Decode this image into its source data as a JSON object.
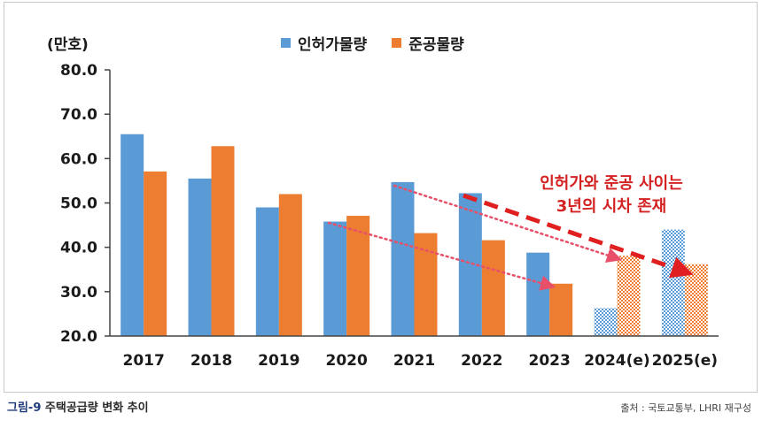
{
  "chart_data": {
    "type": "bar",
    "unit_label": "(만호)",
    "categories": [
      "2017",
      "2018",
      "2019",
      "2020",
      "2021",
      "2022",
      "2023",
      "2024(e)",
      "2025(e)"
    ],
    "estimated_categories": [
      "2024(e)",
      "2025(e)"
    ],
    "series": [
      {
        "name": "인허가물량",
        "color": "#5b9bd5",
        "values": [
          65.5,
          55.5,
          49.0,
          45.8,
          54.7,
          52.2,
          38.8,
          26.3,
          44.0
        ]
      },
      {
        "name": "준공물량",
        "color": "#ed7d31",
        "values": [
          57.1,
          62.8,
          52.0,
          47.1,
          43.2,
          41.6,
          31.8,
          38.1,
          36.2
        ]
      }
    ],
    "ylim": [
      20,
      80
    ],
    "yticks": [
      "20.0",
      "30.0",
      "40.0",
      "50.0",
      "60.0",
      "70.0",
      "80.0"
    ],
    "grid": false,
    "legend_position": "top",
    "annotation_lines": [
      "인허가와  준공  사이는",
      "3년의  시차  존재"
    ],
    "annotation_color": "#d42121"
  },
  "footer": {
    "figure_number": "그림-9",
    "figure_title": "주택공급량 변화 추이",
    "source": "출처 : 국토교통부, LHRI 재구성"
  }
}
